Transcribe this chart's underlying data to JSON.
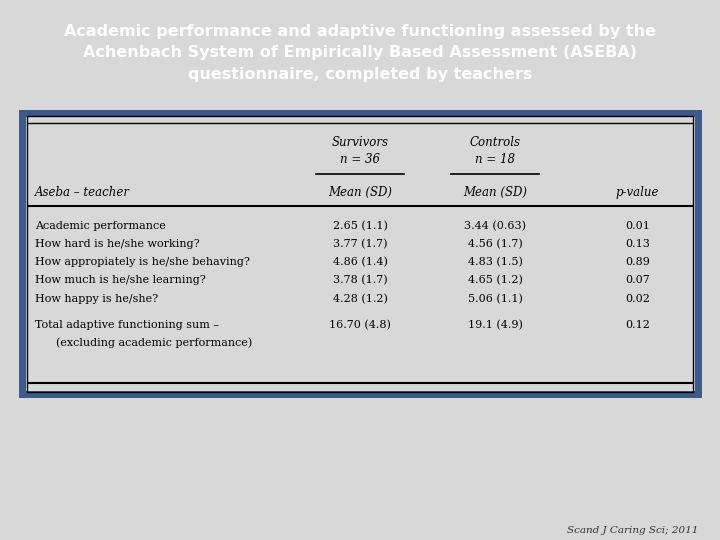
{
  "title_lines": [
    "Academic performance and adaptive functioning assessed by the",
    "Achenbach System of Empirically Based Assessment (ASEBA)",
    "questionnaire, completed by teachers"
  ],
  "title_bg_color": "#4d6d9a",
  "title_text_color": "#ffffff",
  "fig_bg_color": "#d8d8d8",
  "table_bg_color": "#ffffff",
  "table_border_color": "#3a5a8a",
  "header1_line1": "Survivors",
  "header1_line2": "n = 36",
  "header2_line1": "Controls",
  "header2_line2": "n = 18",
  "subheader_left": "Aseba – teacher",
  "subheader_col1": "Mean (SD)",
  "subheader_col2": "Mean (SD)",
  "subheader_col3": "p-value",
  "rows": [
    {
      "label": "Academic performance",
      "label2": "",
      "survivors": "2.65 (1.1)",
      "controls": "3.44 (0.63)",
      "pvalue": "0.01"
    },
    {
      "label": "How hard is he/she working?",
      "label2": "",
      "survivors": "3.77 (1.7)",
      "controls": "4.56 (1.7)",
      "pvalue": "0.13"
    },
    {
      "label": "How appropiately is he/she behaving?",
      "label2": "",
      "survivors": "4.86 (1.4)",
      "controls": "4.83 (1.5)",
      "pvalue": "0.89"
    },
    {
      "label": "How much is he/she learning?",
      "label2": "",
      "survivors": "3.78 (1.7)",
      "controls": "4.65 (1.2)",
      "pvalue": "0.07"
    },
    {
      "label": "How happy is he/she?",
      "label2": "",
      "survivors": "4.28 (1.2)",
      "controls": "5.06 (1.1)",
      "pvalue": "0.02"
    },
    {
      "label": "Total adaptive functioning sum –",
      "label2": "  (excluding academic performance)",
      "survivors": "16.70 (4.8)",
      "controls": "19.1 (4.9)",
      "pvalue": "0.12"
    }
  ],
  "citation": "Scand J Caring Sci; 2011",
  "title_fontsize": 11.5,
  "header_fontsize": 8.5,
  "body_fontsize": 8.0
}
